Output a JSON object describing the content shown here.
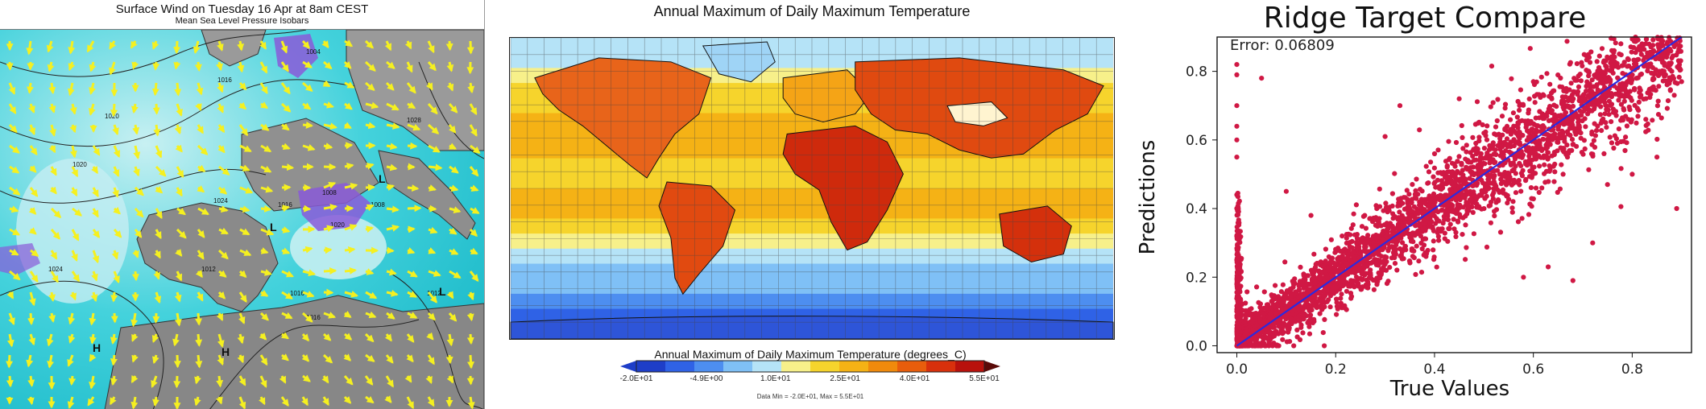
{
  "panels": {
    "wind": {
      "title": "Surface Wind on Tuesday 16 Apr at 8am CEST",
      "subtitle": "Mean Sea Level Pressure Isobars",
      "isobar_labels": [
        "1016",
        "1020",
        "1024",
        "1016",
        "1024",
        "1020",
        "1008",
        "1012",
        "1016",
        "1008",
        "1004",
        "1028",
        "1020",
        "1016",
        "1012"
      ],
      "pressure_markers": [
        "H",
        "H",
        "L",
        "L",
        "L"
      ]
    },
    "temperature": {
      "title": "Annual Maximum of Daily Maximum Temperature",
      "colorbar_title": "Annual Maximum of Daily Maximum Temperature (degrees_C)",
      "colorbar_ticks": [
        "-2.0E+01",
        "-4.9E+00",
        "1.0E+01",
        "2.5E+01",
        "4.0E+01",
        "5.5E+01"
      ],
      "data_range_note": "Data Min = -2.0E+01, Max = 5.5E+01",
      "colors": [
        "#1e3ec8",
        "#2f62e6",
        "#4d8ef0",
        "#7fc0f6",
        "#b5e3f7",
        "#f7f08a",
        "#f6d42c",
        "#f5b215",
        "#f08a0c",
        "#e85d0c",
        "#d8300c",
        "#b8110c"
      ]
    },
    "scatter": {
      "error_text": "Error: 0.06809",
      "point_color": "#d01844",
      "line_color": "#2a2ae0"
    }
  },
  "chart_data": [
    {
      "type": "heatmap",
      "title": "Annual Maximum of Daily Maximum Temperature",
      "colorbar_label": "Annual Maximum of Daily Maximum Temperature (degrees_C)",
      "vmin": -20,
      "vmax": 55,
      "ticks": [
        -20,
        -4.9,
        10,
        25,
        40,
        55
      ]
    },
    {
      "type": "scatter",
      "title": "Ridge Target Compare",
      "xlabel": "True Values",
      "ylabel": "Predictions",
      "xlim": [
        -0.04,
        0.92
      ],
      "ylim": [
        -0.02,
        0.9
      ],
      "xticks": [
        0.0,
        0.2,
        0.4,
        0.6,
        0.8
      ],
      "yticks": [
        0.0,
        0.2,
        0.4,
        0.6,
        0.8
      ],
      "xtick_labels": [
        "0.0",
        "0.2",
        "0.4",
        "0.6",
        "0.8"
      ],
      "ytick_labels": [
        "0.0",
        "0.2",
        "0.4",
        "0.6",
        "0.8"
      ],
      "annotation": "Error: 0.06809",
      "fit_line": {
        "x": [
          0.0,
          0.9
        ],
        "y": [
          0.0,
          0.9
        ]
      },
      "points_summary": "dense cloud of several thousand points around y = x with vertical cluster at x = 0",
      "sample_points": [
        {
          "x": 0.0,
          "y": 0.82
        },
        {
          "x": 0.0,
          "y": 0.79
        },
        {
          "x": 0.0,
          "y": 0.7
        },
        {
          "x": 0.0,
          "y": 0.64
        },
        {
          "x": 0.0,
          "y": 0.6
        },
        {
          "x": 0.0,
          "y": 0.55
        },
        {
          "x": 0.0,
          "y": 0.44
        },
        {
          "x": 0.0,
          "y": 0.4
        },
        {
          "x": 0.0,
          "y": 0.32
        },
        {
          "x": 0.0,
          "y": 0.25
        },
        {
          "x": 0.0,
          "y": 0.18
        },
        {
          "x": 0.0,
          "y": 0.1
        },
        {
          "x": 0.05,
          "y": 0.78
        },
        {
          "x": 0.1,
          "y": 0.45
        },
        {
          "x": 0.15,
          "y": 0.38
        },
        {
          "x": 0.33,
          "y": 0.7
        },
        {
          "x": 0.3,
          "y": 0.61
        },
        {
          "x": 0.45,
          "y": 0.72
        },
        {
          "x": 0.5,
          "y": 0.62
        },
        {
          "x": 0.6,
          "y": 0.77
        },
        {
          "x": 0.58,
          "y": 0.2
        },
        {
          "x": 0.63,
          "y": 0.23
        },
        {
          "x": 0.68,
          "y": 0.19
        },
        {
          "x": 0.72,
          "y": 0.3
        },
        {
          "x": 0.75,
          "y": 0.47
        },
        {
          "x": 0.8,
          "y": 0.5
        },
        {
          "x": 0.82,
          "y": 0.88
        },
        {
          "x": 0.85,
          "y": 0.55
        },
        {
          "x": 0.88,
          "y": 0.8
        },
        {
          "x": 0.9,
          "y": 0.77
        },
        {
          "x": 0.89,
          "y": 0.4
        }
      ]
    }
  ]
}
